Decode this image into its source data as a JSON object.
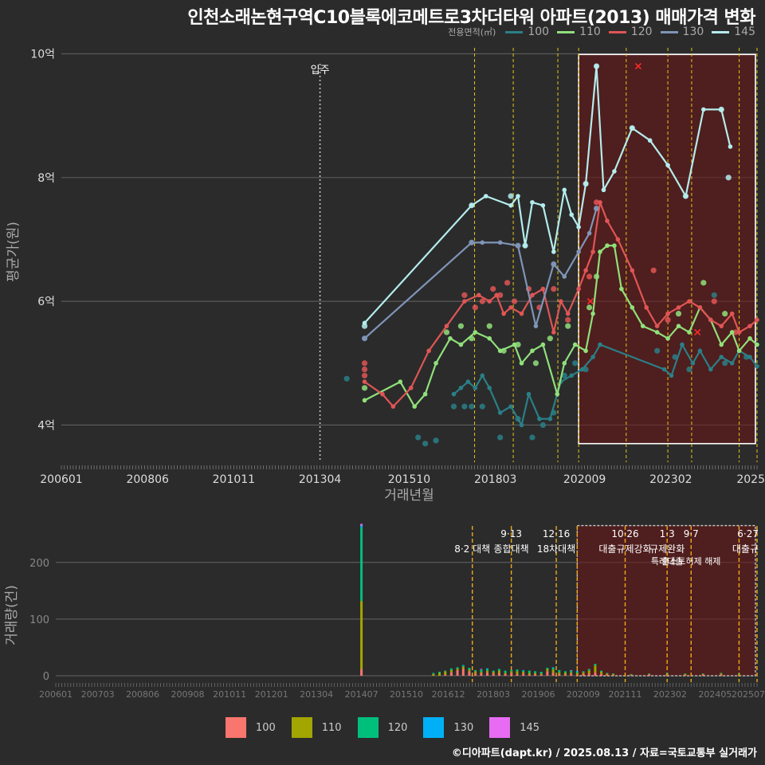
{
  "title": "인천소래논현구역C10블록에코메트로3차더타워 아파트(2013) 매매가격 변화",
  "credit": "©디아파트(dapt.kr) / 2025.08.13 / 자료=국토교통부 실거래가",
  "legend_top": {
    "title": "전용면적(㎡)",
    "items": [
      {
        "label": "100",
        "color": "#2a7f87"
      },
      {
        "label": "110",
        "color": "#90e07a"
      },
      {
        "label": "120",
        "color": "#e05555"
      },
      {
        "label": "130",
        "color": "#7f95b8"
      },
      {
        "label": "145",
        "color": "#b4ecec"
      }
    ]
  },
  "legend_bottom": {
    "items": [
      {
        "label": "100",
        "color": "#f8766d"
      },
      {
        "label": "110",
        "color": "#a3a500"
      },
      {
        "label": "120",
        "color": "#00bf7d"
      },
      {
        "label": "130",
        "color": "#00b0f6"
      },
      {
        "label": "145",
        "color": "#e76bf3"
      }
    ]
  },
  "chart_data": [
    {
      "type": "line",
      "title": "인천소래논현구역C10블록에코메트로3차더타워 아파트(2013) 매매가격 변화",
      "xlabel": "거래년월",
      "ylabel": "평균가(원)",
      "xlim": [
        2006.0,
        2025.5
      ],
      "ylim": [
        3.4,
        10.2
      ],
      "y_ticks": [
        {
          "value": 4,
          "label": "4억"
        },
        {
          "value": 6,
          "label": "6억"
        },
        {
          "value": 8,
          "label": "8억"
        },
        {
          "value": 10,
          "label": "10억"
        }
      ],
      "x_ticks": [
        {
          "value": 2006.0,
          "label": "200601"
        },
        {
          "value": 2008.417,
          "label": "200806"
        },
        {
          "value": 2010.833,
          "label": "201011"
        },
        {
          "value": 2013.25,
          "label": "201304"
        },
        {
          "value": 2015.75,
          "label": "201510"
        },
        {
          "value": 2018.167,
          "label": "201803"
        },
        {
          "value": 2020.667,
          "label": "202009"
        },
        {
          "value": 2023.083,
          "label": "202302"
        },
        {
          "value": 2025.5,
          "label": "2025"
        }
      ],
      "annotation": {
        "x": 2013.25,
        "label": "입주"
      },
      "event_lines": [
        2017.583,
        2018.667,
        2019.917,
        2020.5,
        2021.833,
        2023.0,
        2023.667,
        2025.0,
        2025.5
      ],
      "highlight_range": [
        2020.5,
        2025.5
      ],
      "x_markers": [
        {
          "x": 2020.83,
          "y": 6.0
        },
        {
          "x": 2022.17,
          "y": 9.8
        },
        {
          "x": 2023.83,
          "y": 5.5
        }
      ],
      "series": [
        {
          "name": "100",
          "color": "#2a7f87",
          "x": [
            2017.0,
            2017.2,
            2017.4,
            2017.6,
            2017.8,
            2018.0,
            2018.3,
            2018.6,
            2018.9,
            2019.1,
            2019.4,
            2019.7,
            2020.0,
            2020.3,
            2020.6,
            2020.9,
            2021.1,
            2022.9,
            2023.1,
            2023.4,
            2023.7,
            2023.9,
            2024.2,
            2024.5,
            2024.8,
            2025.0,
            2025.3,
            2025.5
          ],
          "y": [
            4.5,
            4.6,
            4.7,
            4.6,
            4.8,
            4.6,
            4.2,
            4.3,
            4.0,
            4.5,
            4.1,
            4.1,
            4.7,
            4.8,
            4.9,
            5.1,
            5.3,
            4.9,
            4.8,
            5.3,
            5.0,
            5.2,
            4.9,
            5.1,
            5.0,
            5.2,
            5.1,
            4.95
          ],
          "points_x": [
            2014.0,
            2016.0,
            2016.2,
            2016.5,
            2017.0,
            2017.3,
            2017.5,
            2017.8,
            2018.3,
            2018.8,
            2019.2,
            2019.5,
            2019.8,
            2020.1,
            2020.4,
            2020.7,
            2022.7,
            2023.2,
            2023.6,
            2024.3,
            2024.6,
            2025.2
          ],
          "points_y": [
            4.75,
            3.8,
            3.7,
            3.75,
            4.3,
            4.3,
            4.3,
            4.3,
            3.8,
            4.1,
            3.8,
            4.0,
            4.2,
            4.8,
            5.0,
            4.9,
            5.2,
            5.1,
            4.9,
            6.1,
            5.0,
            5.1
          ]
        },
        {
          "name": "110",
          "color": "#90e07a",
          "x": [
            2014.5,
            2015.5,
            2015.9,
            2016.2,
            2016.5,
            2016.9,
            2017.2,
            2017.6,
            2018.0,
            2018.3,
            2018.7,
            2018.9,
            2019.2,
            2019.5,
            2019.9,
            2020.1,
            2020.4,
            2020.7,
            2020.9,
            2021.1,
            2021.3,
            2021.5,
            2021.7,
            2022.0,
            2022.3,
            2022.7,
            2023.0,
            2023.3,
            2023.6,
            2023.9,
            2024.2,
            2024.5,
            2024.8,
            2025.0,
            2025.3,
            2025.5
          ],
          "y": [
            4.4,
            4.7,
            4.3,
            4.5,
            5.0,
            5.4,
            5.3,
            5.5,
            5.4,
            5.2,
            5.3,
            5.0,
            5.2,
            5.3,
            4.5,
            5.0,
            5.3,
            5.2,
            5.8,
            6.8,
            6.9,
            6.9,
            6.2,
            5.9,
            5.6,
            5.5,
            5.4,
            5.6,
            5.5,
            5.9,
            5.7,
            5.3,
            5.5,
            5.2,
            5.4,
            5.3
          ],
          "points_x": [
            2014.5,
            2016.8,
            2017.2,
            2017.5,
            2018.0,
            2018.4,
            2018.8,
            2019.3,
            2019.7,
            2020.2,
            2020.8,
            2021.0,
            2023.3,
            2024.0,
            2024.6
          ],
          "points_y": [
            4.6,
            5.5,
            5.6,
            5.4,
            5.6,
            5.2,
            5.3,
            5.0,
            5.4,
            5.6,
            5.9,
            6.4,
            5.8,
            6.3,
            5.8
          ]
        },
        {
          "name": "120",
          "color": "#e05555",
          "x": [
            2014.5,
            2015.0,
            2015.3,
            2015.8,
            2016.3,
            2016.8,
            2017.3,
            2017.7,
            2018.0,
            2018.2,
            2018.4,
            2018.6,
            2018.9,
            2019.2,
            2019.5,
            2019.8,
            2020.0,
            2020.2,
            2020.5,
            2020.7,
            2020.9,
            2021.1,
            2021.3,
            2021.6,
            2022.0,
            2022.4,
            2022.7,
            2023.0,
            2023.3,
            2023.6,
            2023.9,
            2024.2,
            2024.5,
            2024.8,
            2025.0,
            2025.3,
            2025.5
          ],
          "y": [
            4.7,
            4.5,
            4.3,
            4.6,
            5.2,
            5.6,
            6.0,
            6.1,
            6.0,
            6.1,
            5.8,
            5.9,
            5.8,
            6.1,
            6.2,
            5.5,
            6.0,
            5.8,
            6.2,
            6.5,
            6.8,
            7.6,
            7.3,
            7.0,
            6.5,
            5.9,
            5.6,
            5.8,
            5.9,
            6.0,
            5.9,
            5.7,
            5.6,
            5.8,
            5.5,
            5.6,
            5.7
          ],
          "points_x": [
            2014.5,
            2014.5,
            2014.5,
            2017.3,
            2017.6,
            2017.8,
            2018.1,
            2018.3,
            2018.5,
            2018.7,
            2019.1,
            2019.4,
            2019.8,
            2020.2,
            2020.8,
            2021.0,
            2022.6,
            2023.0,
            2024.3,
            2024.9
          ],
          "points_y": [
            4.9,
            5.0,
            4.8,
            6.1,
            5.9,
            6.0,
            6.2,
            6.1,
            6.3,
            6.0,
            6.2,
            5.9,
            6.2,
            5.7,
            6.4,
            7.6,
            6.5,
            5.7,
            6.0,
            5.5
          ]
        },
        {
          "name": "130",
          "color": "#7f95b8",
          "x": [
            2014.5,
            2017.5,
            2017.8,
            2018.3,
            2018.8,
            2019.3,
            2019.8,
            2020.1,
            2020.5,
            2020.8,
            2021.0
          ],
          "y": [
            5.4,
            6.95,
            6.95,
            6.95,
            6.9,
            5.6,
            6.6,
            6.4,
            6.8,
            7.1,
            7.5
          ],
          "points_x": [
            2014.5,
            2017.5,
            2018.8,
            2019.8,
            2021.0
          ],
          "points_y": [
            5.4,
            6.95,
            6.9,
            6.6,
            7.5
          ]
        },
        {
          "name": "145",
          "color": "#b4ecec",
          "x": [
            2014.5,
            2017.5,
            2017.9,
            2018.6,
            2018.8,
            2019.0,
            2019.2,
            2019.5,
            2019.8,
            2020.1,
            2020.3,
            2020.5,
            2020.7,
            2021.0,
            2021.2,
            2021.5,
            2022.0,
            2022.5,
            2023.0,
            2023.5,
            2024.0,
            2024.5,
            2024.75
          ],
          "y": [
            5.65,
            7.55,
            7.7,
            7.55,
            7.7,
            6.9,
            7.6,
            7.55,
            6.8,
            7.8,
            7.4,
            7.2,
            7.9,
            9.8,
            7.8,
            8.1,
            8.8,
            8.6,
            8.2,
            7.7,
            9.1,
            9.1,
            8.5
          ],
          "points_x": [
            2014.5,
            2017.5,
            2018.6,
            2019.0,
            2020.7,
            2021.0,
            2022.0,
            2023.5,
            2024.5,
            2024.7
          ],
          "points_y": [
            5.6,
            7.55,
            7.7,
            6.9,
            7.9,
            9.8,
            8.8,
            7.7,
            9.1,
            8.0
          ]
        }
      ]
    },
    {
      "type": "bar",
      "stacked": true,
      "xlabel": "",
      "ylabel": "거래량(건)",
      "xlim": [
        2006.0,
        2025.5
      ],
      "ylim": [
        0,
        270
      ],
      "y_ticks": [
        {
          "value": 0,
          "label": "0"
        },
        {
          "value": 100,
          "label": "100"
        },
        {
          "value": 200,
          "label": "200"
        }
      ],
      "x_ticks": [
        {
          "value": 2006.0,
          "label": "200601"
        },
        {
          "value": 2007.167,
          "label": "200703"
        },
        {
          "value": 2008.417,
          "label": "200806"
        },
        {
          "value": 2009.667,
          "label": "200908"
        },
        {
          "value": 2010.833,
          "label": "201011"
        },
        {
          "value": 2012.0,
          "label": "201201"
        },
        {
          "value": 2013.25,
          "label": "201304"
        },
        {
          "value": 2014.5,
          "label": "201407"
        },
        {
          "value": 2015.75,
          "label": "201510"
        },
        {
          "value": 2016.917,
          "label": "201612"
        },
        {
          "value": 2018.167,
          "label": "201803"
        },
        {
          "value": 2019.417,
          "label": "201906"
        },
        {
          "value": 2020.667,
          "label": "202009"
        },
        {
          "value": 2021.833,
          "label": "202111"
        },
        {
          "value": 2023.083,
          "label": "202302"
        },
        {
          "value": 2024.333,
          "label": "202405"
        },
        {
          "value": 2025.5,
          "label": "202507"
        }
      ],
      "event_lines": [
        2017.583,
        2018.667,
        2019.917,
        2020.5,
        2021.833,
        2023.0,
        2023.667,
        2025.0,
        2025.5
      ],
      "highlight_range": [
        2020.5,
        2025.5
      ],
      "event_labels": [
        {
          "x": 2017.583,
          "date": "",
          "text": "8·2 대책",
          "line2": ""
        },
        {
          "x": 2018.667,
          "date": "9·13",
          "text": "종합대책",
          "line2": ""
        },
        {
          "x": 2019.917,
          "date": "12·16",
          "text": "18차대책",
          "line2": ""
        },
        {
          "x": 2021.833,
          "date": "10·26",
          "text": "대출규제강화",
          "line2": ""
        },
        {
          "x": 2023.0,
          "date": "1·3",
          "text": "규제완화",
          "line2": "특례대출"
        },
        {
          "x": 2023.667,
          "date": "9·7",
          "text": "",
          "line2": "출소토허제 해제"
        },
        {
          "x": 2025.5,
          "date": "6·27",
          "text": "대출규",
          "line2": ""
        }
      ],
      "series_names": [
        "100",
        "110",
        "120",
        "130",
        "145"
      ],
      "categories": [
        2014.5,
        2016.5,
        2016.67,
        2016.83,
        2017.0,
        2017.17,
        2017.33,
        2017.5,
        2017.67,
        2017.83,
        2018.0,
        2018.17,
        2018.33,
        2018.5,
        2018.67,
        2018.83,
        2019.0,
        2019.17,
        2019.33,
        2019.5,
        2019.67,
        2019.83,
        2020.0,
        2020.17,
        2020.33,
        2020.5,
        2020.67,
        2020.83,
        2021.0,
        2021.17,
        2021.33,
        2021.5,
        2022.0,
        2022.5,
        2023.0,
        2023.5,
        2024.0,
        2024.5,
        2025.0
      ],
      "values": [
        [
          12,
          0,
          0,
          2,
          6,
          10,
          12,
          8,
          4,
          5,
          6,
          4,
          5,
          3,
          5,
          3,
          4,
          2,
          3,
          2,
          8,
          5,
          3,
          2,
          4,
          2,
          3,
          4,
          6,
          3,
          2,
          1,
          1,
          2,
          2,
          1,
          2,
          2,
          1
        ],
        [
          120,
          3,
          5,
          6,
          4,
          3,
          4,
          3,
          4,
          2,
          3,
          3,
          4,
          2,
          3,
          5,
          3,
          3,
          2,
          2,
          4,
          6,
          3,
          4,
          2,
          3,
          3,
          5,
          12,
          4,
          2,
          2,
          1,
          1,
          2,
          2,
          1,
          2,
          2
        ],
        [
          130,
          2,
          2,
          1,
          3,
          2,
          2,
          3,
          2,
          4,
          3,
          2,
          3,
          4,
          2,
          3,
          2,
          4,
          3,
          3,
          2,
          3,
          4,
          2,
          3,
          2,
          2,
          3,
          3,
          2,
          1,
          1,
          1,
          1,
          1,
          1,
          1,
          1,
          1
        ],
        [
          3,
          0,
          0,
          0,
          0,
          0,
          1,
          0,
          0,
          0,
          1,
          0,
          0,
          0,
          0,
          0,
          1,
          0,
          0,
          0,
          0,
          1,
          0,
          0,
          0,
          1,
          0,
          0,
          0,
          0,
          0,
          0,
          0,
          0,
          0,
          0,
          0,
          0,
          0
        ],
        [
          3,
          0,
          0,
          0,
          0,
          0,
          0,
          0,
          0,
          1,
          0,
          0,
          0,
          0,
          0,
          0,
          0,
          0,
          0,
          0,
          0,
          0,
          0,
          0,
          1,
          0,
          0,
          0,
          0,
          0,
          0,
          0,
          0,
          0,
          0,
          0,
          0,
          0,
          0
        ]
      ]
    }
  ]
}
